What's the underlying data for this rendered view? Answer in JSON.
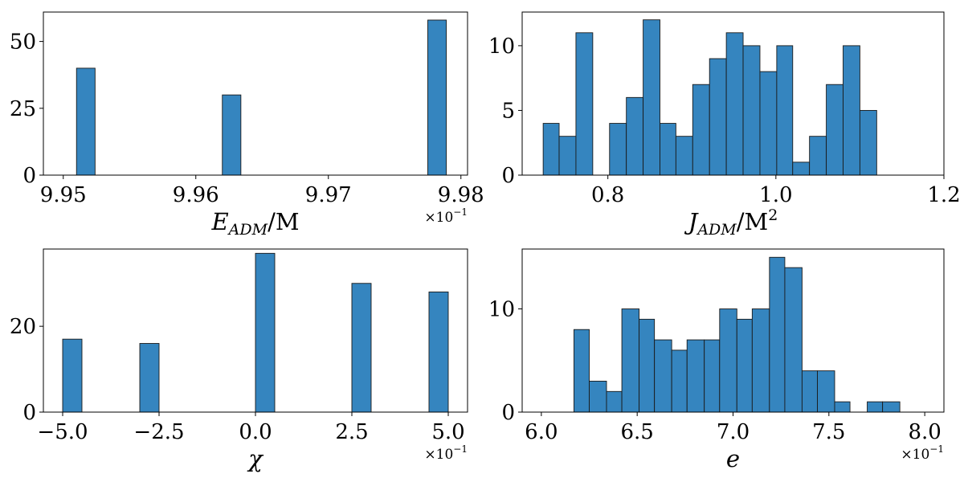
{
  "colors": {
    "bar_fill": "#3585bf",
    "bar_edge": "#1a1a1a"
  },
  "chart_data": [
    {
      "type": "bar",
      "style": "histogram",
      "xlabel": "E_ADM/M",
      "xlabel_parts": {
        "main": "E",
        "sub": "ADM",
        "rest": "/M",
        "sup": ""
      },
      "offset_text": "×10",
      "offset_exponent": "−1",
      "xlim": [
        9.9485,
        9.9805
      ],
      "ylim": [
        0,
        61
      ],
      "xticks": [
        9.95,
        9.96,
        9.97,
        9.98
      ],
      "xtick_labels": [
        "9.95",
        "9.96",
        "9.97",
        "9.98"
      ],
      "yticks": [
        0,
        25,
        50
      ],
      "ytick_labels": [
        "0",
        "25",
        "50"
      ],
      "bins": [
        [
          9.951,
          9.9524,
          40
        ],
        [
          9.962,
          9.9634,
          30
        ],
        [
          9.9775,
          9.9789,
          58
        ]
      ]
    },
    {
      "type": "bar",
      "style": "histogram",
      "xlabel": "J_ADM/M^2",
      "xlabel_parts": {
        "main": "J",
        "sub": "ADM",
        "rest": "/M",
        "sup": "2"
      },
      "offset_text": "",
      "offset_exponent": "",
      "xlim": [
        0.698,
        1.2
      ],
      "ylim": [
        0,
        12.6
      ],
      "xticks": [
        0.8,
        1.0,
        1.2
      ],
      "xtick_labels": [
        "0.8",
        "1.0",
        "1.2"
      ],
      "yticks": [
        0,
        5,
        10
      ],
      "ytick_labels": [
        "0",
        "5",
        "10"
      ],
      "bins": [
        [
          0.723,
          0.742,
          4
        ],
        [
          0.742,
          0.762,
          3
        ],
        [
          0.762,
          0.782,
          11
        ],
        [
          0.782,
          0.802,
          0
        ],
        [
          0.802,
          0.822,
          4
        ],
        [
          0.822,
          0.842,
          6
        ],
        [
          0.842,
          0.862,
          12
        ],
        [
          0.862,
          0.881,
          4
        ],
        [
          0.881,
          0.901,
          3
        ],
        [
          0.901,
          0.921,
          7
        ],
        [
          0.921,
          0.941,
          9
        ],
        [
          0.941,
          0.961,
          11
        ],
        [
          0.961,
          0.981,
          10
        ],
        [
          0.981,
          1.001,
          8
        ],
        [
          1.001,
          1.02,
          10
        ],
        [
          1.02,
          1.04,
          1
        ],
        [
          1.04,
          1.06,
          3
        ],
        [
          1.06,
          1.08,
          7
        ],
        [
          1.08,
          1.1,
          10
        ],
        [
          1.1,
          1.12,
          5
        ]
      ]
    },
    {
      "type": "bar",
      "style": "histogram",
      "xlabel": "χ",
      "xlabel_parts": {
        "main": "χ",
        "sub": "",
        "rest": "",
        "sup": ""
      },
      "offset_text": "×10",
      "offset_exponent": "−1",
      "xlim": [
        -5.5,
        5.5
      ],
      "ylim": [
        0,
        38
      ],
      "xticks": [
        -5.0,
        -2.5,
        0.0,
        2.5,
        5.0
      ],
      "xtick_labels": [
        "−5.0",
        "−2.5",
        "0.0",
        "2.5",
        "5.0"
      ],
      "yticks": [
        0,
        20
      ],
      "ytick_labels": [
        "0",
        "20"
      ],
      "bins": [
        [
          -5.0,
          -4.5,
          17
        ],
        [
          -3.0,
          -2.5,
          16
        ],
        [
          0.0,
          0.5,
          37
        ],
        [
          2.5,
          3.0,
          30
        ],
        [
          4.5,
          5.0,
          28
        ]
      ]
    },
    {
      "type": "bar",
      "style": "histogram",
      "xlabel": "e",
      "xlabel_parts": {
        "main": "e",
        "sub": "",
        "rest": "",
        "sup": ""
      },
      "offset_text": "×10",
      "offset_exponent": "−1",
      "xlim": [
        5.9,
        8.1
      ],
      "ylim": [
        0,
        15.8
      ],
      "xticks": [
        6.0,
        6.5,
        7.0,
        7.5,
        8.0
      ],
      "xtick_labels": [
        "6.0",
        "6.5",
        "7.0",
        "7.5",
        "8.0"
      ],
      "yticks": [
        0,
        10
      ],
      "ytick_labels": [
        "0",
        "10"
      ],
      "bins": [
        [
          6.17,
          6.25,
          8
        ],
        [
          6.25,
          6.34,
          3
        ],
        [
          6.34,
          6.42,
          2
        ],
        [
          6.42,
          6.51,
          10
        ],
        [
          6.51,
          6.59,
          9
        ],
        [
          6.59,
          6.68,
          7
        ],
        [
          6.68,
          6.76,
          6
        ],
        [
          6.76,
          6.85,
          7
        ],
        [
          6.85,
          6.93,
          7
        ],
        [
          6.93,
          7.02,
          10
        ],
        [
          7.02,
          7.1,
          9
        ],
        [
          7.1,
          7.19,
          10
        ],
        [
          7.19,
          7.27,
          15
        ],
        [
          7.27,
          7.36,
          14
        ],
        [
          7.36,
          7.44,
          4
        ],
        [
          7.44,
          7.53,
          4
        ],
        [
          7.53,
          7.61,
          1
        ],
        [
          7.61,
          7.7,
          0
        ],
        [
          7.7,
          7.78,
          1
        ],
        [
          7.78,
          7.87,
          1
        ]
      ]
    }
  ]
}
